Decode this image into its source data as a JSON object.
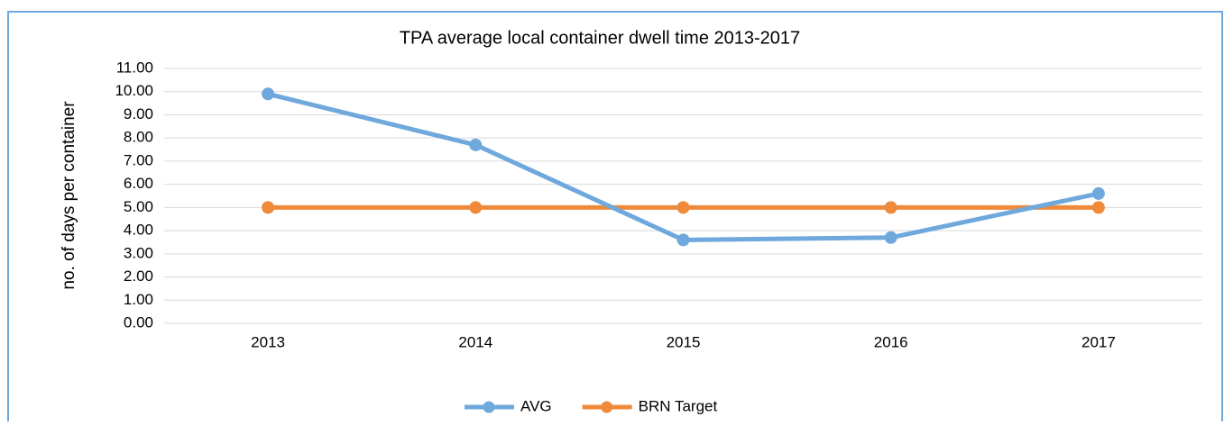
{
  "chart_data": {
    "type": "line",
    "title": "TPA average local container dwell time 2013-2017",
    "y_label": "no. of days per container",
    "categories": [
      "2013",
      "2014",
      "2015",
      "2016",
      "2017"
    ],
    "series": [
      {
        "name": "AVG",
        "color": "#6fa8dc",
        "values": [
          9.9,
          7.7,
          3.6,
          3.7,
          5.6
        ]
      },
      {
        "name": "BRN Target",
        "color": "#ef8a3a",
        "values": [
          5,
          5,
          5,
          5,
          5
        ]
      }
    ],
    "ylim": [
      0,
      11
    ],
    "yticks": [
      {
        "value": 0,
        "label": "0.00"
      },
      {
        "value": 1,
        "label": "1.00"
      },
      {
        "value": 2,
        "label": "2.00"
      },
      {
        "value": 3,
        "label": "3.00"
      },
      {
        "value": 4,
        "label": "4.00"
      },
      {
        "value": 5,
        "label": "5.00"
      },
      {
        "value": 6,
        "label": "6.00"
      },
      {
        "value": 7,
        "label": "7.00"
      },
      {
        "value": 8,
        "label": "8.00"
      },
      {
        "value": 9,
        "label": "9.00"
      },
      {
        "value": 10,
        "label": "10.00"
      },
      {
        "value": 11,
        "label": "11.00"
      }
    ],
    "grid": true,
    "legend": "bottom"
  }
}
